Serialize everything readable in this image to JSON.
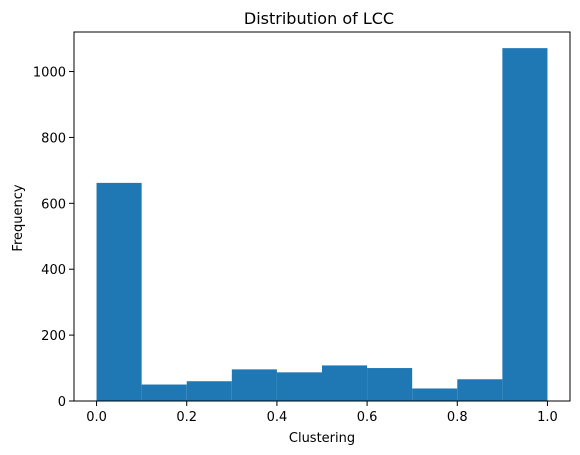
{
  "chart_data": {
    "type": "bar",
    "title": "Distribution of LCC",
    "xlabel": "Clustering",
    "ylabel": "Frequency",
    "bin_edges": [
      0.0,
      0.1,
      0.2,
      0.3,
      0.4,
      0.5,
      0.6,
      0.7,
      0.8,
      0.9,
      1.0
    ],
    "values": [
      662,
      50,
      60,
      96,
      87,
      108,
      100,
      38,
      66,
      1071
    ],
    "xlim": [
      -0.05,
      1.05
    ],
    "ylim": [
      0,
      1120
    ],
    "xticks": [
      {
        "value": 0.0,
        "label": "0.0"
      },
      {
        "value": 0.2,
        "label": "0.2"
      },
      {
        "value": 0.4,
        "label": "0.4"
      },
      {
        "value": 0.6,
        "label": "0.6"
      },
      {
        "value": 0.8,
        "label": "0.8"
      },
      {
        "value": 1.0,
        "label": "1.0"
      }
    ],
    "yticks": [
      {
        "value": 0,
        "label": "0"
      },
      {
        "value": 200,
        "label": "200"
      },
      {
        "value": 400,
        "label": "400"
      },
      {
        "value": 600,
        "label": "600"
      },
      {
        "value": 800,
        "label": "800"
      },
      {
        "value": 1000,
        "label": "1000"
      }
    ],
    "bar_color": "#1f77b4",
    "grid": false
  }
}
